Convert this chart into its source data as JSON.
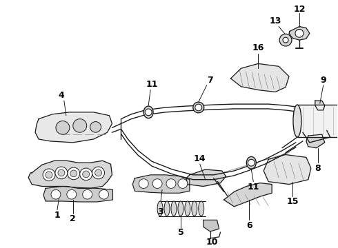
{
  "bg_color": "#ffffff",
  "line_color": "#1a1a1a",
  "text_color": "#000000",
  "lfs": 9
}
